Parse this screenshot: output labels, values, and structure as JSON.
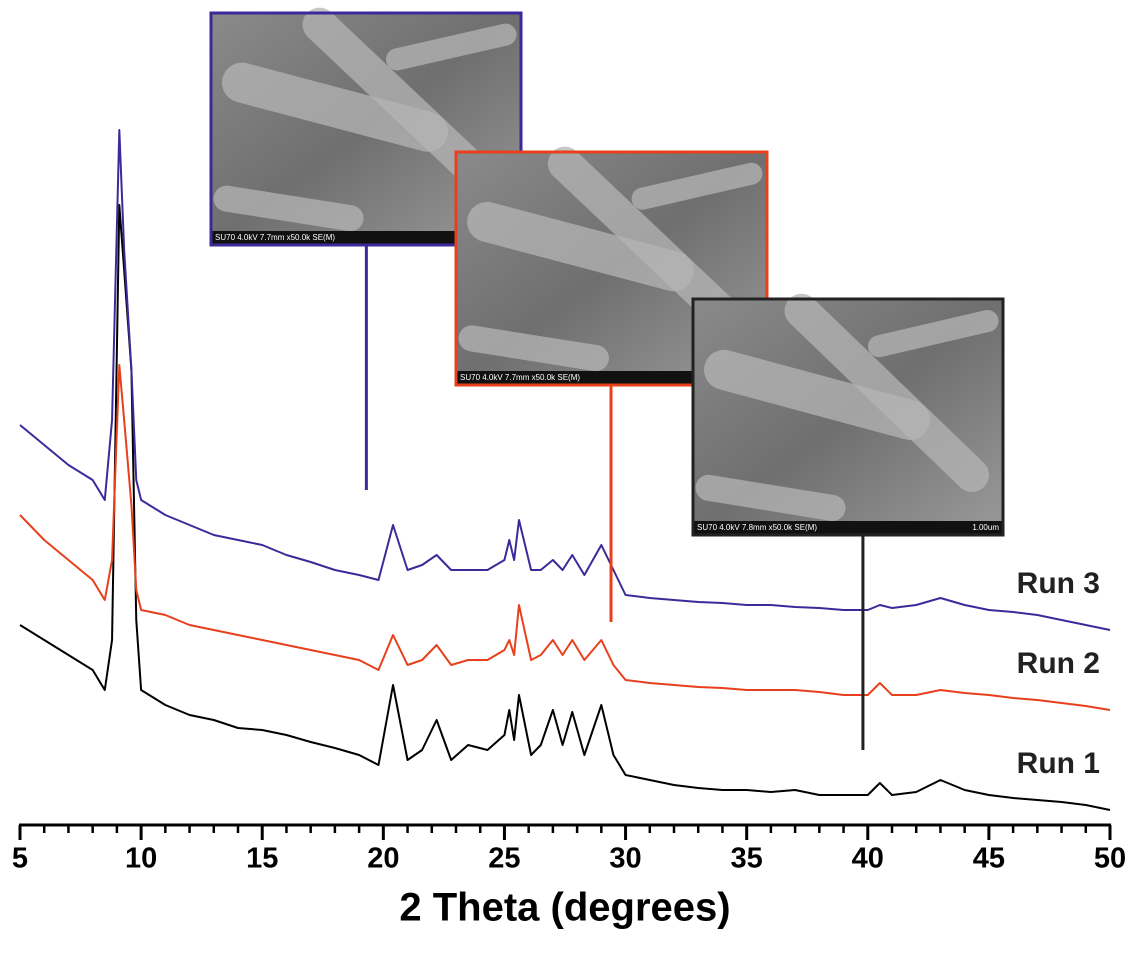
{
  "chart_data": {
    "type": "line",
    "x_label": "2 Theta (degrees)",
    "x": [
      5,
      6,
      7,
      8,
      8.5,
      8.8,
      9.1,
      9.3,
      9.6,
      9.8,
      10,
      11,
      12,
      13,
      14,
      15,
      16,
      17,
      18,
      19,
      19.8,
      20.4,
      21,
      21.6,
      22.2,
      22.8,
      23.5,
      24.3,
      25,
      25.2,
      25.4,
      25.6,
      26.1,
      26.5,
      27,
      27.4,
      27.8,
      28.3,
      29,
      29.5,
      30,
      31,
      32,
      33,
      34,
      35,
      36,
      37,
      38,
      39,
      40,
      40.5,
      41,
      42,
      43,
      44,
      45,
      46,
      47,
      48,
      49,
      50
    ],
    "series": [
      {
        "name": "Run 1",
        "color": "#000000",
        "values": [
          200,
          185,
          170,
          155,
          135,
          185,
          620,
          555,
          455,
          205,
          135,
          120,
          110,
          105,
          97,
          95,
          90,
          83,
          77,
          70,
          60,
          140,
          65,
          75,
          105,
          65,
          80,
          75,
          90,
          115,
          85,
          130,
          70,
          80,
          115,
          80,
          113,
          70,
          120,
          70,
          50,
          45,
          40,
          37,
          35,
          35,
          33,
          35,
          30,
          30,
          30,
          42,
          30,
          33,
          45,
          35,
          30,
          27,
          25,
          23,
          20,
          15
        ]
      },
      {
        "name": "Run 2",
        "color": "#e8401c",
        "values": [
          310,
          285,
          265,
          245,
          225,
          265,
          460,
          405,
          320,
          235,
          215,
          210,
          200,
          195,
          190,
          185,
          180,
          175,
          170,
          165,
          155,
          190,
          160,
          165,
          180,
          160,
          165,
          165,
          175,
          185,
          170,
          220,
          165,
          170,
          185,
          170,
          185,
          165,
          185,
          160,
          145,
          142,
          140,
          138,
          137,
          135,
          135,
          135,
          133,
          130,
          130,
          142,
          130,
          130,
          135,
          132,
          130,
          127,
          125,
          122,
          119,
          115
        ]
      },
      {
        "name": "Run 3",
        "color": "#3b2a9a",
        "values": [
          400,
          380,
          360,
          345,
          325,
          405,
          695,
          575,
          455,
          345,
          325,
          310,
          300,
          290,
          285,
          280,
          270,
          263,
          255,
          250,
          245,
          300,
          255,
          260,
          270,
          255,
          255,
          255,
          265,
          285,
          265,
          305,
          255,
          255,
          265,
          255,
          270,
          250,
          280,
          255,
          230,
          227,
          225,
          223,
          222,
          220,
          220,
          218,
          217,
          215,
          215,
          220,
          217,
          220,
          227,
          220,
          215,
          213,
          210,
          205,
          200,
          195
        ]
      }
    ],
    "xlim": [
      5,
      50
    ],
    "xticks": [
      5,
      10,
      15,
      20,
      25,
      30,
      35,
      40,
      45,
      50
    ],
    "xminorticks": [
      6,
      7,
      8,
      9,
      11,
      12,
      13,
      14,
      16,
      17,
      18,
      19,
      21,
      22,
      23,
      24,
      26,
      27,
      28,
      29,
      31,
      32,
      33,
      34,
      36,
      37,
      38,
      39,
      41,
      42,
      43,
      44,
      46,
      47,
      48,
      49
    ],
    "ylim": [
      0,
      700
    ],
    "insets": [
      {
        "x": 19.3,
        "color": "#3b2a9a",
        "caption": "SU70 4.0kV 7.7mm x50.0k SE(M)"
      },
      {
        "x": 29.4,
        "color": "#e8401c",
        "caption": "SU70 4.0kV 7.7mm x50.0k SE(M)"
      },
      {
        "x": 39.8,
        "color": "#222222",
        "caption": "SU70 4.0kV 7.8mm x50.0k SE(M)",
        "scale": "1.00um"
      }
    ]
  }
}
